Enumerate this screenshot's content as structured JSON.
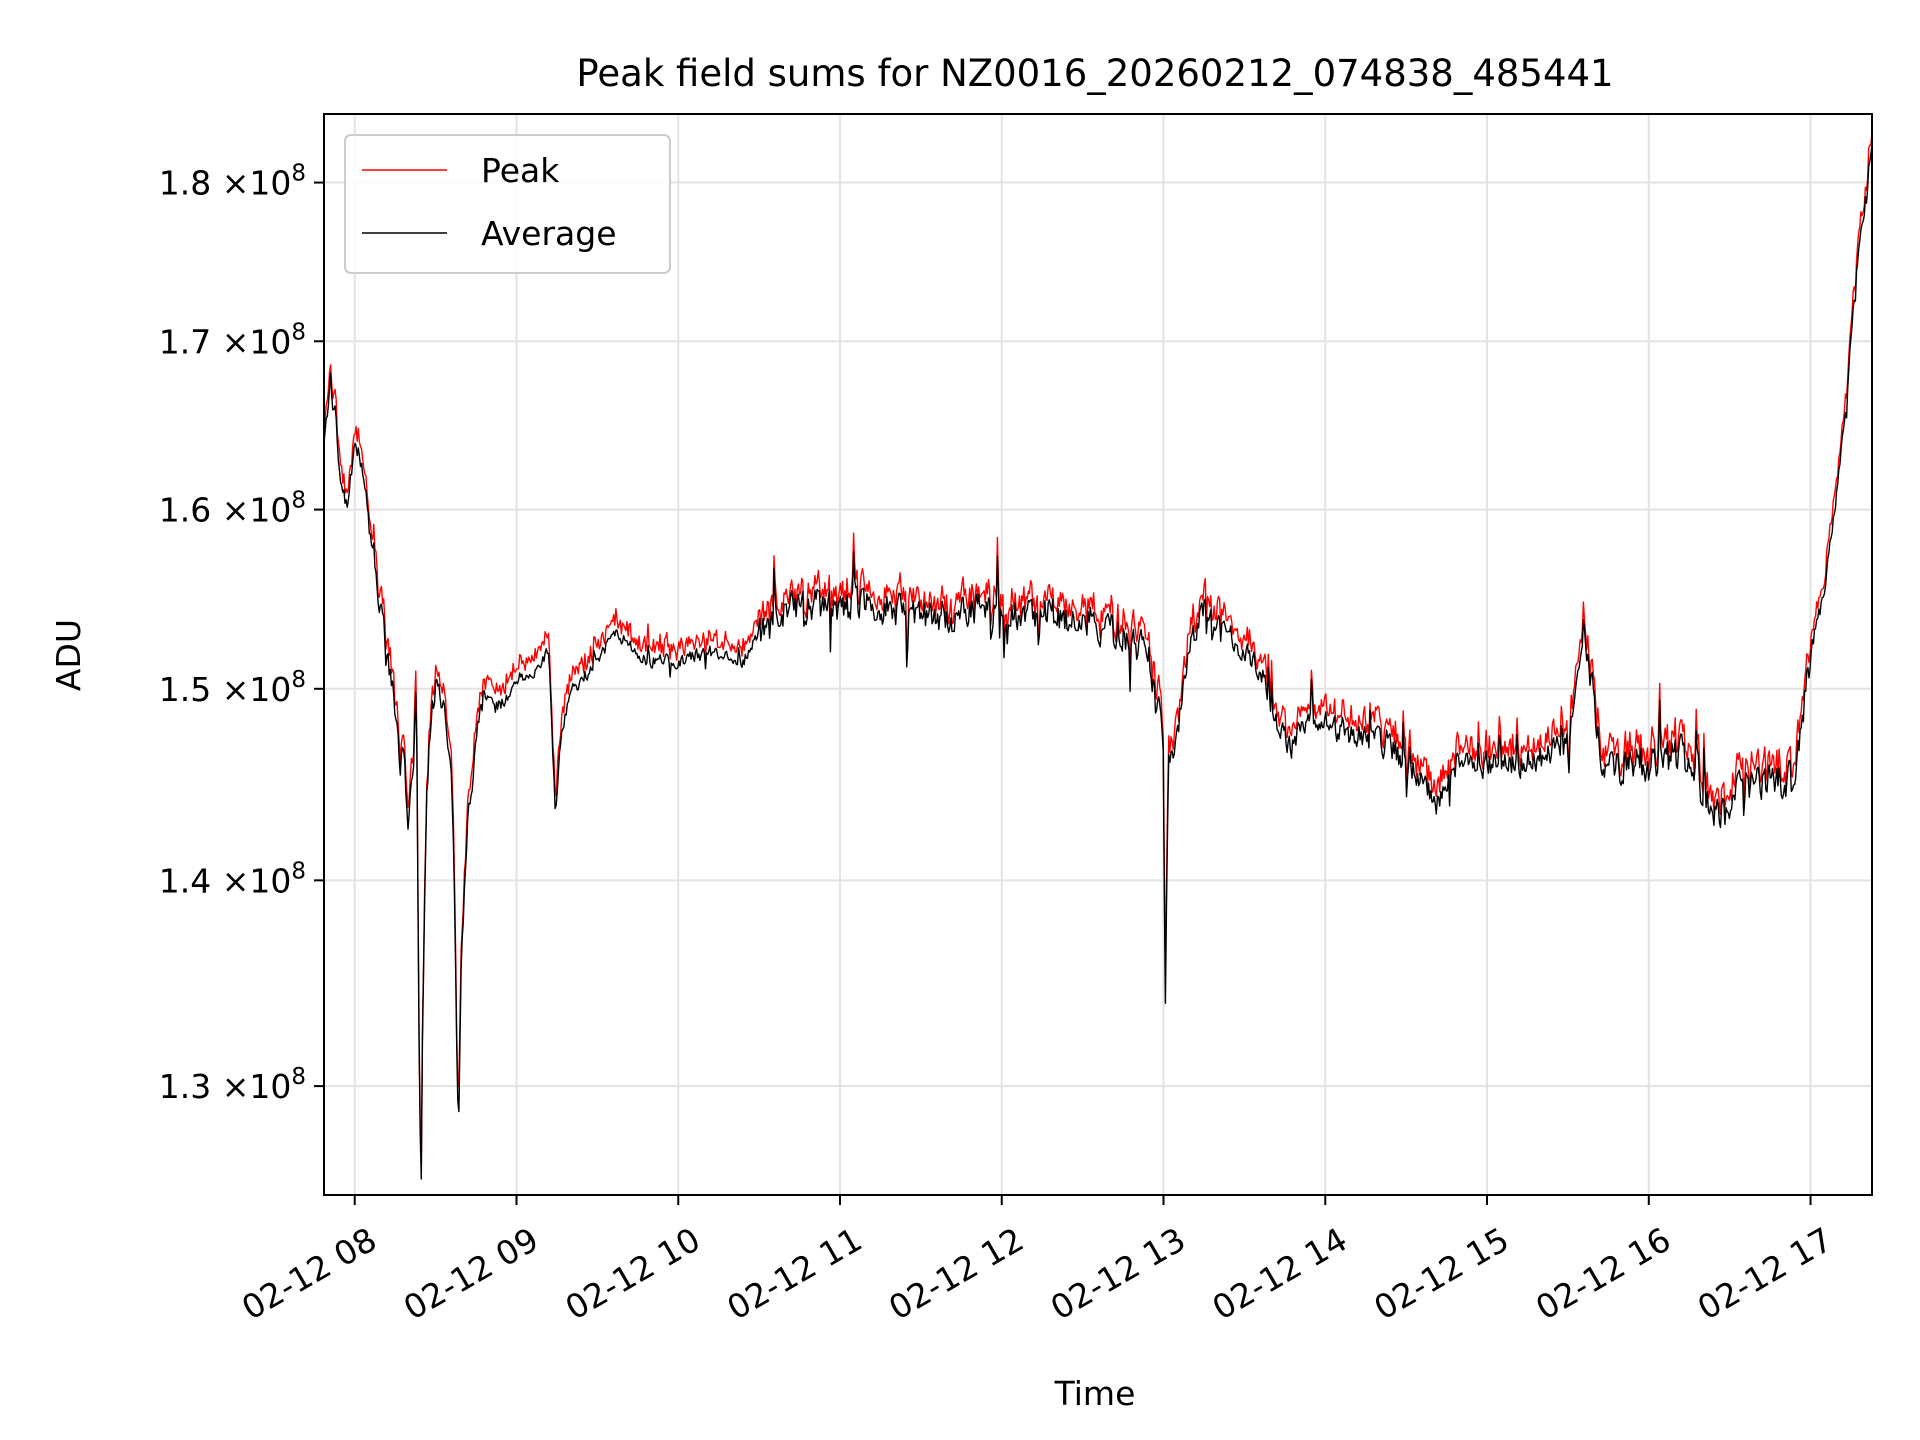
{
  "chart_data": {
    "type": "line",
    "title": "Peak field sums for NZ0016_20260212_074838_485441",
    "xlabel": "Time",
    "ylabel": "ADU",
    "yscale": "log",
    "xlim_hours": [
      7.81,
      17.38
    ],
    "ylim": [
      125000000,
      184500000
    ],
    "grid": true,
    "legend_position": "upper left",
    "x_ticks": [
      {
        "hour": 8,
        "label": "02-12 08"
      },
      {
        "hour": 9,
        "label": "02-12 09"
      },
      {
        "hour": 10,
        "label": "02-12 10"
      },
      {
        "hour": 11,
        "label": "02-12 11"
      },
      {
        "hour": 12,
        "label": "02-12 12"
      },
      {
        "hour": 13,
        "label": "02-12 13"
      },
      {
        "hour": 14,
        "label": "02-12 14"
      },
      {
        "hour": 15,
        "label": "02-12 15"
      },
      {
        "hour": 16,
        "label": "02-12 16"
      },
      {
        "hour": 17,
        "label": "02-12 17"
      }
    ],
    "y_ticks": [
      {
        "value": 130000000,
        "mantissa": "1.3",
        "exponent": "8"
      },
      {
        "value": 140000000,
        "mantissa": "1.4",
        "exponent": "8"
      },
      {
        "value": 150000000,
        "mantissa": "1.5",
        "exponent": "8"
      },
      {
        "value": 160000000,
        "mantissa": "1.6",
        "exponent": "8"
      },
      {
        "value": 170000000,
        "mantissa": "1.7",
        "exponent": "8"
      },
      {
        "value": 180000000,
        "mantissa": "1.8",
        "exponent": "8"
      }
    ],
    "times_label": "×10",
    "series": [
      {
        "name": "Peak",
        "color": "#ff0000",
        "offset": 800000,
        "anchors": [
          [
            7.81,
            163.5
          ],
          [
            7.85,
            167.5
          ],
          [
            7.88,
            165.5
          ],
          [
            7.92,
            161.0
          ],
          [
            7.96,
            160.0
          ],
          [
            8.0,
            164.0
          ],
          [
            8.05,
            162.0
          ],
          [
            8.1,
            158.0
          ],
          [
            8.15,
            155.0
          ],
          [
            8.2,
            152.0
          ],
          [
            8.25,
            149.0
          ],
          [
            8.28,
            146.0
          ],
          [
            8.3,
            147.0
          ],
          [
            8.33,
            143.0
          ],
          [
            8.36,
            145.0
          ],
          [
            8.38,
            150.0
          ],
          [
            8.4,
            130.0
          ],
          [
            8.41,
            124.5
          ],
          [
            8.42,
            133.0
          ],
          [
            8.45,
            147.0
          ],
          [
            8.5,
            150.0
          ],
          [
            8.55,
            149.0
          ],
          [
            8.6,
            145.0
          ],
          [
            8.62,
            138.0
          ],
          [
            8.64,
            127.5
          ],
          [
            8.66,
            136.0
          ],
          [
            8.7,
            143.0
          ],
          [
            8.75,
            147.0
          ],
          [
            8.8,
            150.0
          ],
          [
            8.9,
            149.0
          ],
          [
            9.0,
            150.5
          ],
          [
            9.1,
            151.0
          ],
          [
            9.2,
            152.0
          ],
          [
            9.24,
            143.5
          ],
          [
            9.28,
            148.0
          ],
          [
            9.35,
            150.0
          ],
          [
            9.5,
            151.5
          ],
          [
            9.6,
            153.0
          ],
          [
            9.7,
            152.5
          ],
          [
            9.8,
            151.5
          ],
          [
            10.0,
            151.5
          ],
          [
            10.2,
            152.0
          ],
          [
            10.4,
            151.5
          ],
          [
            10.5,
            153.0
          ],
          [
            10.7,
            154.5
          ],
          [
            10.9,
            154.5
          ],
          [
            11.1,
            154.5
          ],
          [
            11.3,
            154.5
          ],
          [
            11.5,
            154.0
          ],
          [
            11.7,
            154.0
          ],
          [
            11.9,
            154.5
          ],
          [
            12.1,
            154.0
          ],
          [
            12.3,
            154.0
          ],
          [
            12.5,
            154.0
          ],
          [
            12.7,
            153.0
          ],
          [
            12.9,
            152.0
          ],
          [
            12.98,
            149.0
          ],
          [
            13.0,
            146.0
          ],
          [
            13.01,
            133.0
          ],
          [
            13.03,
            146.0
          ],
          [
            13.08,
            147.0
          ],
          [
            13.15,
            152.0
          ],
          [
            13.25,
            154.5
          ],
          [
            13.4,
            153.0
          ],
          [
            13.6,
            151.0
          ],
          [
            13.7,
            148.0
          ],
          [
            13.8,
            147.0
          ],
          [
            13.9,
            148.5
          ],
          [
            14.0,
            148.0
          ],
          [
            14.2,
            147.5
          ],
          [
            14.4,
            147.0
          ],
          [
            14.6,
            145.0
          ],
          [
            14.7,
            144.0
          ],
          [
            14.8,
            146.0
          ],
          [
            15.0,
            146.0
          ],
          [
            15.2,
            146.0
          ],
          [
            15.4,
            146.5
          ],
          [
            15.5,
            147.0
          ],
          [
            15.6,
            154.0
          ],
          [
            15.7,
            146.0
          ],
          [
            15.8,
            146.0
          ],
          [
            16.0,
            146.0
          ],
          [
            16.2,
            146.5
          ],
          [
            16.3,
            145.0
          ],
          [
            16.4,
            143.5
          ],
          [
            16.5,
            143.5
          ],
          [
            16.6,
            145.0
          ],
          [
            16.8,
            145.0
          ],
          [
            16.9,
            145.0
          ],
          [
            17.0,
            152.0
          ],
          [
            17.08,
            155.0
          ],
          [
            17.15,
            160.0
          ],
          [
            17.22,
            166.0
          ],
          [
            17.28,
            174.0
          ],
          [
            17.34,
            179.0
          ],
          [
            17.38,
            183.0
          ]
        ]
      },
      {
        "name": "Average",
        "color": "#000000",
        "offset": 0,
        "anchors": [
          [
            7.81,
            163.5
          ],
          [
            7.85,
            167.5
          ],
          [
            7.88,
            165.5
          ],
          [
            7.92,
            161.0
          ],
          [
            7.96,
            160.0
          ],
          [
            8.0,
            164.0
          ],
          [
            8.05,
            162.0
          ],
          [
            8.1,
            158.0
          ],
          [
            8.15,
            155.0
          ],
          [
            8.2,
            152.0
          ],
          [
            8.25,
            149.0
          ],
          [
            8.28,
            146.0
          ],
          [
            8.3,
            147.0
          ],
          [
            8.33,
            143.0
          ],
          [
            8.36,
            145.0
          ],
          [
            8.38,
            150.0
          ],
          [
            8.4,
            130.0
          ],
          [
            8.41,
            124.5
          ],
          [
            8.42,
            133.0
          ],
          [
            8.45,
            147.0
          ],
          [
            8.5,
            150.0
          ],
          [
            8.55,
            149.0
          ],
          [
            8.6,
            145.0
          ],
          [
            8.62,
            138.0
          ],
          [
            8.64,
            127.5
          ],
          [
            8.66,
            136.0
          ],
          [
            8.7,
            143.0
          ],
          [
            8.75,
            147.0
          ],
          [
            8.8,
            150.0
          ],
          [
            8.9,
            149.0
          ],
          [
            9.0,
            150.5
          ],
          [
            9.1,
            151.0
          ],
          [
            9.2,
            152.0
          ],
          [
            9.24,
            143.5
          ],
          [
            9.28,
            148.0
          ],
          [
            9.35,
            150.0
          ],
          [
            9.5,
            151.5
          ],
          [
            9.6,
            153.0
          ],
          [
            9.7,
            152.5
          ],
          [
            9.8,
            151.5
          ],
          [
            10.0,
            151.5
          ],
          [
            10.2,
            152.0
          ],
          [
            10.4,
            151.5
          ],
          [
            10.5,
            153.0
          ],
          [
            10.7,
            154.5
          ],
          [
            10.9,
            154.5
          ],
          [
            11.1,
            154.5
          ],
          [
            11.3,
            154.5
          ],
          [
            11.5,
            154.0
          ],
          [
            11.7,
            154.0
          ],
          [
            11.9,
            154.5
          ],
          [
            12.1,
            154.0
          ],
          [
            12.3,
            154.0
          ],
          [
            12.5,
            154.0
          ],
          [
            12.7,
            153.0
          ],
          [
            12.9,
            152.0
          ],
          [
            12.98,
            149.0
          ],
          [
            13.0,
            146.0
          ],
          [
            13.01,
            133.0
          ],
          [
            13.03,
            146.0
          ],
          [
            13.08,
            147.0
          ],
          [
            13.15,
            152.0
          ],
          [
            13.25,
            154.5
          ],
          [
            13.4,
            153.0
          ],
          [
            13.6,
            151.0
          ],
          [
            13.7,
            148.0
          ],
          [
            13.8,
            147.0
          ],
          [
            13.9,
            148.5
          ],
          [
            14.0,
            148.0
          ],
          [
            14.2,
            147.5
          ],
          [
            14.4,
            147.0
          ],
          [
            14.6,
            145.0
          ],
          [
            14.7,
            144.0
          ],
          [
            14.8,
            146.0
          ],
          [
            15.0,
            146.0
          ],
          [
            15.2,
            146.0
          ],
          [
            15.4,
            146.5
          ],
          [
            15.5,
            147.0
          ],
          [
            15.6,
            154.0
          ],
          [
            15.7,
            146.0
          ],
          [
            15.8,
            146.0
          ],
          [
            16.0,
            146.0
          ],
          [
            16.2,
            146.5
          ],
          [
            16.3,
            145.0
          ],
          [
            16.4,
            143.5
          ],
          [
            16.5,
            143.5
          ],
          [
            16.6,
            145.0
          ],
          [
            16.8,
            145.0
          ],
          [
            16.9,
            145.0
          ],
          [
            17.0,
            152.0
          ],
          [
            17.08,
            155.0
          ],
          [
            17.15,
            160.0
          ],
          [
            17.22,
            166.0
          ],
          [
            17.28,
            174.0
          ],
          [
            17.34,
            179.0
          ],
          [
            17.38,
            183.0
          ]
        ]
      }
    ]
  }
}
